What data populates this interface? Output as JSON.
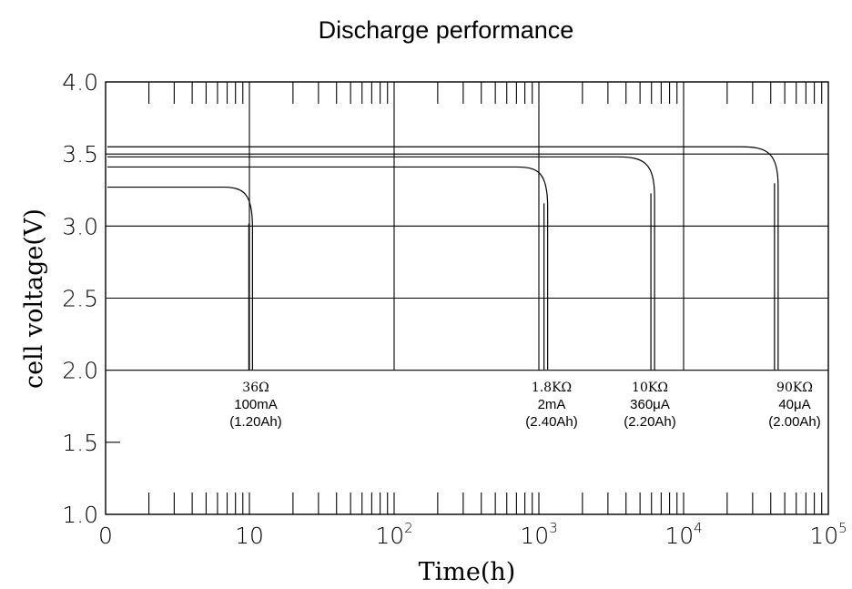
{
  "chart_data": {
    "type": "line",
    "title": "Discharge performance",
    "xlabel": "Time(h)",
    "ylabel": "cell voltage(V)",
    "x_scale": "log",
    "xlim": [
      1,
      100000
    ],
    "ylim": [
      1.0,
      4.0
    ],
    "grid": true,
    "x_ticks": [
      {
        "value": 1,
        "base": "0",
        "exp": ""
      },
      {
        "value": 10,
        "base": "10",
        "exp": ""
      },
      {
        "value": 100,
        "base": "10",
        "exp": "2"
      },
      {
        "value": 1000,
        "base": "10",
        "exp": "3"
      },
      {
        "value": 10000,
        "base": "10",
        "exp": "4"
      },
      {
        "value": 100000,
        "base": "10",
        "exp": "5"
      }
    ],
    "y_ticks": [
      {
        "value": 1.0,
        "label": "1.0"
      },
      {
        "value": 1.5,
        "label": "1.5"
      },
      {
        "value": 2.0,
        "label": "2.0"
      },
      {
        "value": 2.5,
        "label": "2.5"
      },
      {
        "value": 3.0,
        "label": "3.0"
      },
      {
        "value": 3.5,
        "label": "3.5"
      },
      {
        "value": 4.0,
        "label": "4.0"
      }
    ],
    "series": [
      {
        "annotation": [
          "36Ω",
          "100mA",
          "(1.20Ah)"
        ],
        "plateau_voltage": 3.27,
        "knee_time": 6.5,
        "end_time": 10.5,
        "end_voltage": 2.0,
        "x": [
          1,
          6.5,
          8.5,
          10.2,
          10.5
        ],
        "y": [
          3.27,
          3.27,
          3.2,
          3.05,
          2.0
        ]
      },
      {
        "annotation": [
          "1.8KΩ",
          "2mA",
          "(2.40Ah)"
        ],
        "plateau_voltage": 3.41,
        "knee_time": 700,
        "end_time": 1150,
        "end_voltage": 2.0,
        "x": [
          1,
          700,
          950,
          1120,
          1150
        ],
        "y": [
          3.41,
          3.41,
          3.35,
          3.2,
          2.0
        ]
      },
      {
        "annotation": [
          "10KΩ",
          "360μA",
          "(2.20Ah)"
        ],
        "plateau_voltage": 3.48,
        "knee_time": 3500,
        "end_time": 6300,
        "end_voltage": 2.0,
        "x": [
          1,
          3500,
          5000,
          6100,
          6300
        ],
        "y": [
          3.48,
          3.48,
          3.42,
          3.27,
          2.0
        ]
      },
      {
        "annotation": [
          "90KΩ",
          "40μA",
          "(2.00Ah)"
        ],
        "plateau_voltage": 3.55,
        "knee_time": 25000,
        "end_time": 45000,
        "end_voltage": 2.0,
        "x": [
          1,
          25000,
          36000,
          44000,
          45000
        ],
        "y": [
          3.55,
          3.55,
          3.49,
          3.33,
          2.0
        ]
      }
    ],
    "reference_line": {
      "y": 3.5
    }
  }
}
